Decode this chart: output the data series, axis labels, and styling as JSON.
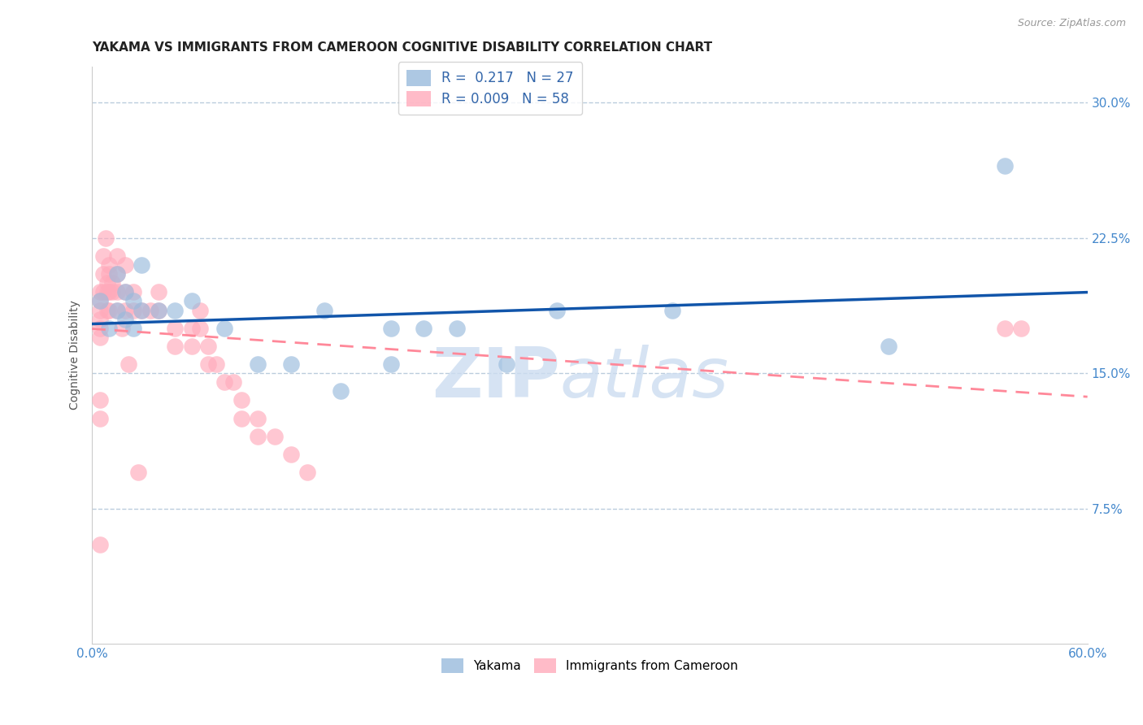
{
  "title": "YAKAMA VS IMMIGRANTS FROM CAMEROON COGNITIVE DISABILITY CORRELATION CHART",
  "source": "Source: ZipAtlas.com",
  "ylabel": "Cognitive Disability",
  "xlim": [
    0.0,
    0.6
  ],
  "ylim": [
    0.0,
    0.32
  ],
  "yticks": [
    0.075,
    0.15,
    0.225,
    0.3
  ],
  "ytick_labels": [
    "7.5%",
    "15.0%",
    "22.5%",
    "30.0%"
  ],
  "xticks": [
    0.0,
    0.1,
    0.2,
    0.3,
    0.4,
    0.5,
    0.6
  ],
  "xtick_labels": [
    "0.0%",
    "",
    "",
    "",
    "",
    "",
    "60.0%"
  ],
  "blue_color": "#99BBDD",
  "pink_color": "#FFAABB",
  "line_blue": "#1155AA",
  "line_pink": "#FF8899",
  "axis_color": "#4488CC",
  "grid_color": "#BBCCDD",
  "yakama_x": [
    0.005,
    0.01,
    0.015,
    0.015,
    0.02,
    0.02,
    0.025,
    0.025,
    0.03,
    0.03,
    0.04,
    0.05,
    0.06,
    0.08,
    0.1,
    0.12,
    0.14,
    0.15,
    0.18,
    0.2,
    0.22,
    0.28,
    0.35,
    0.48,
    0.55,
    0.18,
    0.25
  ],
  "yakama_y": [
    0.19,
    0.175,
    0.185,
    0.205,
    0.18,
    0.195,
    0.19,
    0.175,
    0.185,
    0.21,
    0.185,
    0.185,
    0.19,
    0.175,
    0.155,
    0.155,
    0.185,
    0.14,
    0.175,
    0.175,
    0.175,
    0.185,
    0.185,
    0.165,
    0.265,
    0.155,
    0.155
  ],
  "cameroon_x": [
    0.005,
    0.005,
    0.005,
    0.005,
    0.005,
    0.005,
    0.007,
    0.007,
    0.007,
    0.008,
    0.009,
    0.009,
    0.009,
    0.01,
    0.01,
    0.01,
    0.01,
    0.012,
    0.012,
    0.015,
    0.015,
    0.015,
    0.015,
    0.018,
    0.02,
    0.02,
    0.02,
    0.022,
    0.025,
    0.025,
    0.028,
    0.03,
    0.035,
    0.04,
    0.04,
    0.05,
    0.05,
    0.06,
    0.06,
    0.065,
    0.065,
    0.07,
    0.07,
    0.075,
    0.08,
    0.085,
    0.09,
    0.09,
    0.1,
    0.1,
    0.11,
    0.12,
    0.13,
    0.005,
    0.005,
    0.005,
    0.55,
    0.56
  ],
  "cameroon_y": [
    0.195,
    0.19,
    0.185,
    0.18,
    0.175,
    0.17,
    0.215,
    0.205,
    0.195,
    0.225,
    0.2,
    0.195,
    0.185,
    0.21,
    0.205,
    0.195,
    0.185,
    0.2,
    0.195,
    0.215,
    0.205,
    0.195,
    0.185,
    0.175,
    0.21,
    0.195,
    0.185,
    0.155,
    0.195,
    0.185,
    0.095,
    0.185,
    0.185,
    0.195,
    0.185,
    0.175,
    0.165,
    0.175,
    0.165,
    0.185,
    0.175,
    0.165,
    0.155,
    0.155,
    0.145,
    0.145,
    0.135,
    0.125,
    0.125,
    0.115,
    0.115,
    0.105,
    0.095,
    0.135,
    0.125,
    0.055,
    0.175,
    0.175
  ],
  "watermark_zip": "ZIP",
  "watermark_atlas": "atlas",
  "title_fontsize": 11,
  "label_fontsize": 10,
  "tick_fontsize": 11
}
